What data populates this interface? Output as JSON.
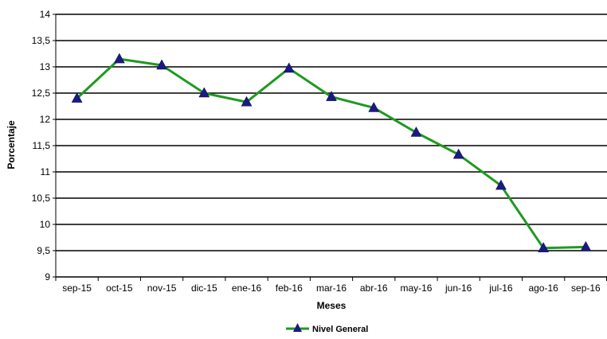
{
  "chart_data": {
    "type": "line",
    "categories": [
      "sep-15",
      "oct-15",
      "nov-15",
      "dic-15",
      "ene-16",
      "feb-16",
      "mar-16",
      "abr-16",
      "may-16",
      "jun-16",
      "jul-16",
      "ago-16",
      "sep-16"
    ],
    "series": [
      {
        "name": "Nivel General",
        "color": "#1f9a1f",
        "marker_color": "#1a1a80",
        "marker": "triangle",
        "values": [
          12.4,
          13.15,
          13.03,
          12.5,
          12.33,
          12.97,
          12.43,
          12.22,
          11.75,
          11.33,
          10.74,
          9.55,
          9.57
        ]
      }
    ],
    "xlabel": "Meses",
    "ylabel": "Porcentaje",
    "ylim": [
      9,
      14
    ],
    "y_ticks": [
      "9",
      "9,5",
      "10",
      "10,5",
      "11",
      "11,5",
      "12",
      "12,5",
      "13",
      "13,5",
      "14"
    ],
    "y_tick_values": [
      9,
      9.5,
      10,
      10.5,
      11,
      11.5,
      12,
      12.5,
      13,
      13.5,
      14
    ],
    "grid": true,
    "legend_position": "bottom-center"
  }
}
